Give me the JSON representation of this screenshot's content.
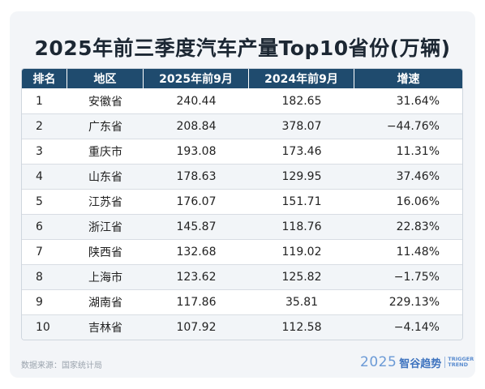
{
  "title": "2025年前三季度汽车产量Top10省份(万辆)",
  "chart_data": {
    "type": "table",
    "title": "2025年前三季度汽车产量Top10省份(万辆)",
    "columns": [
      "排名",
      "地区",
      "2025年前9月",
      "2024年前9月",
      "增速"
    ],
    "rows": [
      [
        "1",
        "安徽省",
        "240.44",
        "182.65",
        "31.64%"
      ],
      [
        "2",
        "广东省",
        "208.84",
        "378.07",
        "−44.76%"
      ],
      [
        "3",
        "重庆市",
        "193.08",
        "173.46",
        "11.31%"
      ],
      [
        "4",
        "山东省",
        "178.63",
        "129.95",
        "37.46%"
      ],
      [
        "5",
        "江苏省",
        "176.07",
        "151.71",
        "16.06%"
      ],
      [
        "6",
        "浙江省",
        "145.87",
        "118.76",
        "22.83%"
      ],
      [
        "7",
        "陕西省",
        "132.68",
        "119.02",
        "11.48%"
      ],
      [
        "8",
        "上海市",
        "123.62",
        "125.82",
        "−1.75%"
      ],
      [
        "9",
        "湖南省",
        "117.86",
        "35.81",
        "229.13%"
      ],
      [
        "10",
        "吉林省",
        "107.92",
        "112.58",
        "−4.14%"
      ]
    ]
  },
  "footer": {
    "source": "数据来源：国家统计局",
    "brand_year": "2025",
    "brand_name": "智谷趋势",
    "brand_tag_1": "TRIGGER",
    "brand_tag_2": "TREND"
  },
  "colors": {
    "header_bg": "#1f4b6e",
    "brand": "#3f74bf"
  }
}
